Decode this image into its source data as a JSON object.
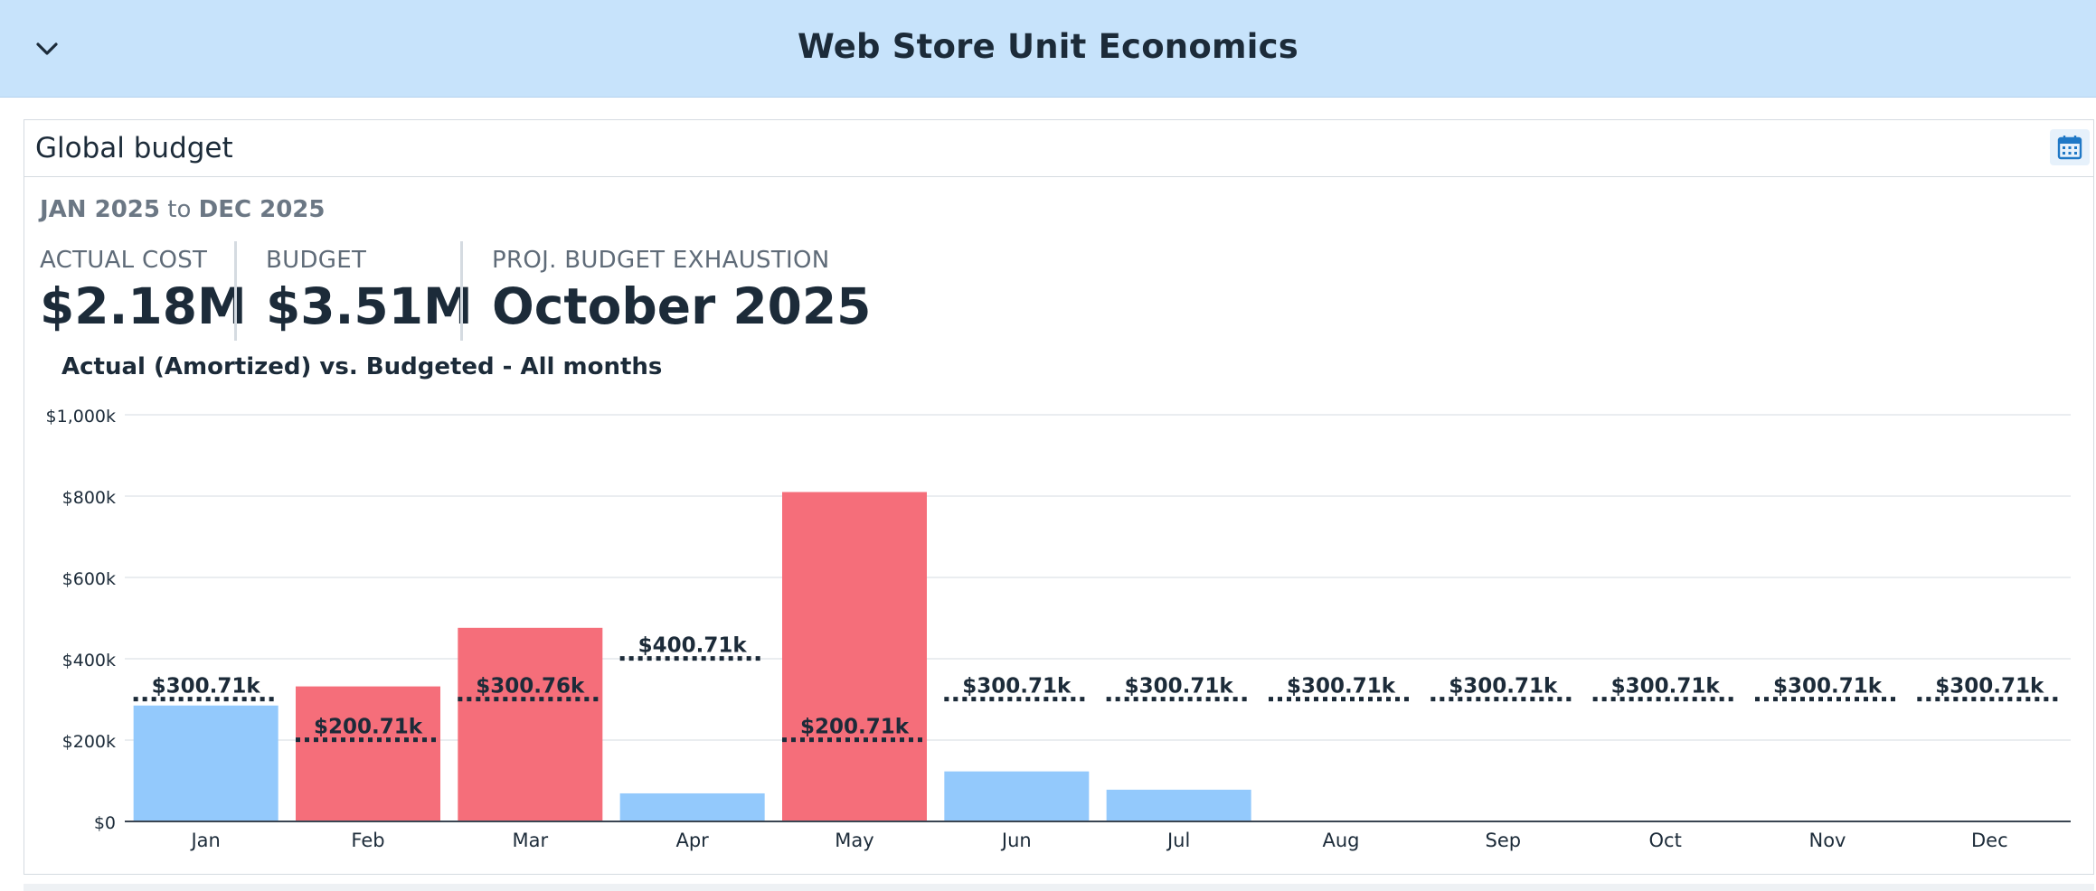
{
  "header": {
    "title": "Web Store Unit Economics",
    "chevron_icon": "chevron-down-icon"
  },
  "card": {
    "title": "Global budget",
    "calendar_icon": "calendar-icon",
    "range": {
      "start": "JAN 2025",
      "sep": "to",
      "end": "DEC 2025"
    },
    "kpis": [
      {
        "label": "ACTUAL COST",
        "value": "$2.18M"
      },
      {
        "label": "BUDGET",
        "value": "$3.51M"
      },
      {
        "label": "PROJ. BUDGET EXHAUSTION",
        "value": "October 2025"
      }
    ]
  },
  "colors": {
    "under_budget": "#93c9fc",
    "over_budget": "#f56e7a",
    "budget_line": "#1c2b39",
    "header_bg": "#c7e3fb"
  },
  "chart_data": {
    "type": "bar",
    "title": "Actual (Amortized) vs. Budgeted - All months",
    "categories": [
      "Jan",
      "Feb",
      "Mar",
      "Apr",
      "May",
      "Jun",
      "Jul",
      "Aug",
      "Sep",
      "Oct",
      "Nov",
      "Dec"
    ],
    "y_ticks": [
      "$0",
      "$200k",
      "$400k",
      "$600k",
      "$800k",
      "$1,000k"
    ],
    "ylim": [
      0,
      1000
    ],
    "grid": true,
    "series": [
      {
        "values": [
          285,
          332,
          476,
          69,
          810,
          123,
          78,
          0,
          0,
          0,
          0,
          0
        ]
      },
      {
        "values": [
          300.71,
          200.71,
          300.76,
          400.71,
          200.71,
          300.71,
          300.71,
          300.71,
          300.71,
          300.71,
          300.71,
          300.71
        ],
        "labels": [
          "$300.71k",
          "$200.71k",
          "$300.76k",
          "$400.71k",
          "$200.71k",
          "$300.71k",
          "$300.71k",
          "$300.71k",
          "$300.71k",
          "$300.71k",
          "$300.71k",
          "$300.71k"
        ]
      }
    ]
  }
}
